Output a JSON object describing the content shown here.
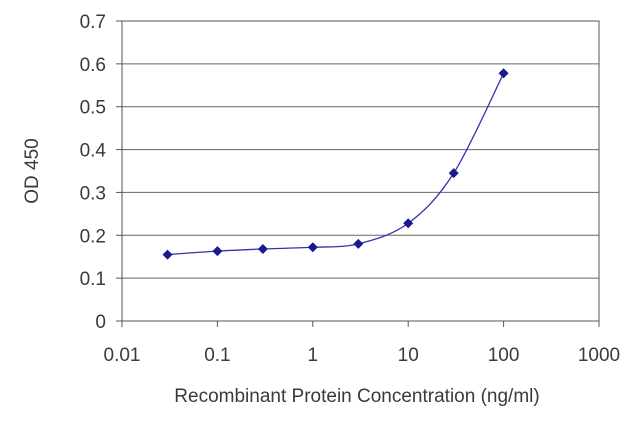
{
  "chart_data": {
    "type": "line",
    "xlabel": "Recombinant Protein Concentration (ng/ml)",
    "ylabel": "OD 450",
    "xscale": "log",
    "xlim": [
      0.01,
      1000
    ],
    "ylim": [
      0,
      0.7
    ],
    "x_ticks": [
      "0.01",
      "0.1",
      "1",
      "10",
      "100",
      "1000"
    ],
    "y_ticks": [
      "0",
      "0.1",
      "0.2",
      "0.3",
      "0.4",
      "0.5",
      "0.6",
      "0.7"
    ],
    "grid": "horizontal",
    "legend": "none",
    "marker": "diamond",
    "color": "#1a1a8c",
    "series": [
      {
        "x": [
          0.03,
          0.1,
          0.3,
          1,
          3,
          10,
          30,
          100
        ],
        "y": [
          0.155,
          0.163,
          0.168,
          0.172,
          0.18,
          0.228,
          0.345,
          0.578
        ]
      }
    ]
  }
}
